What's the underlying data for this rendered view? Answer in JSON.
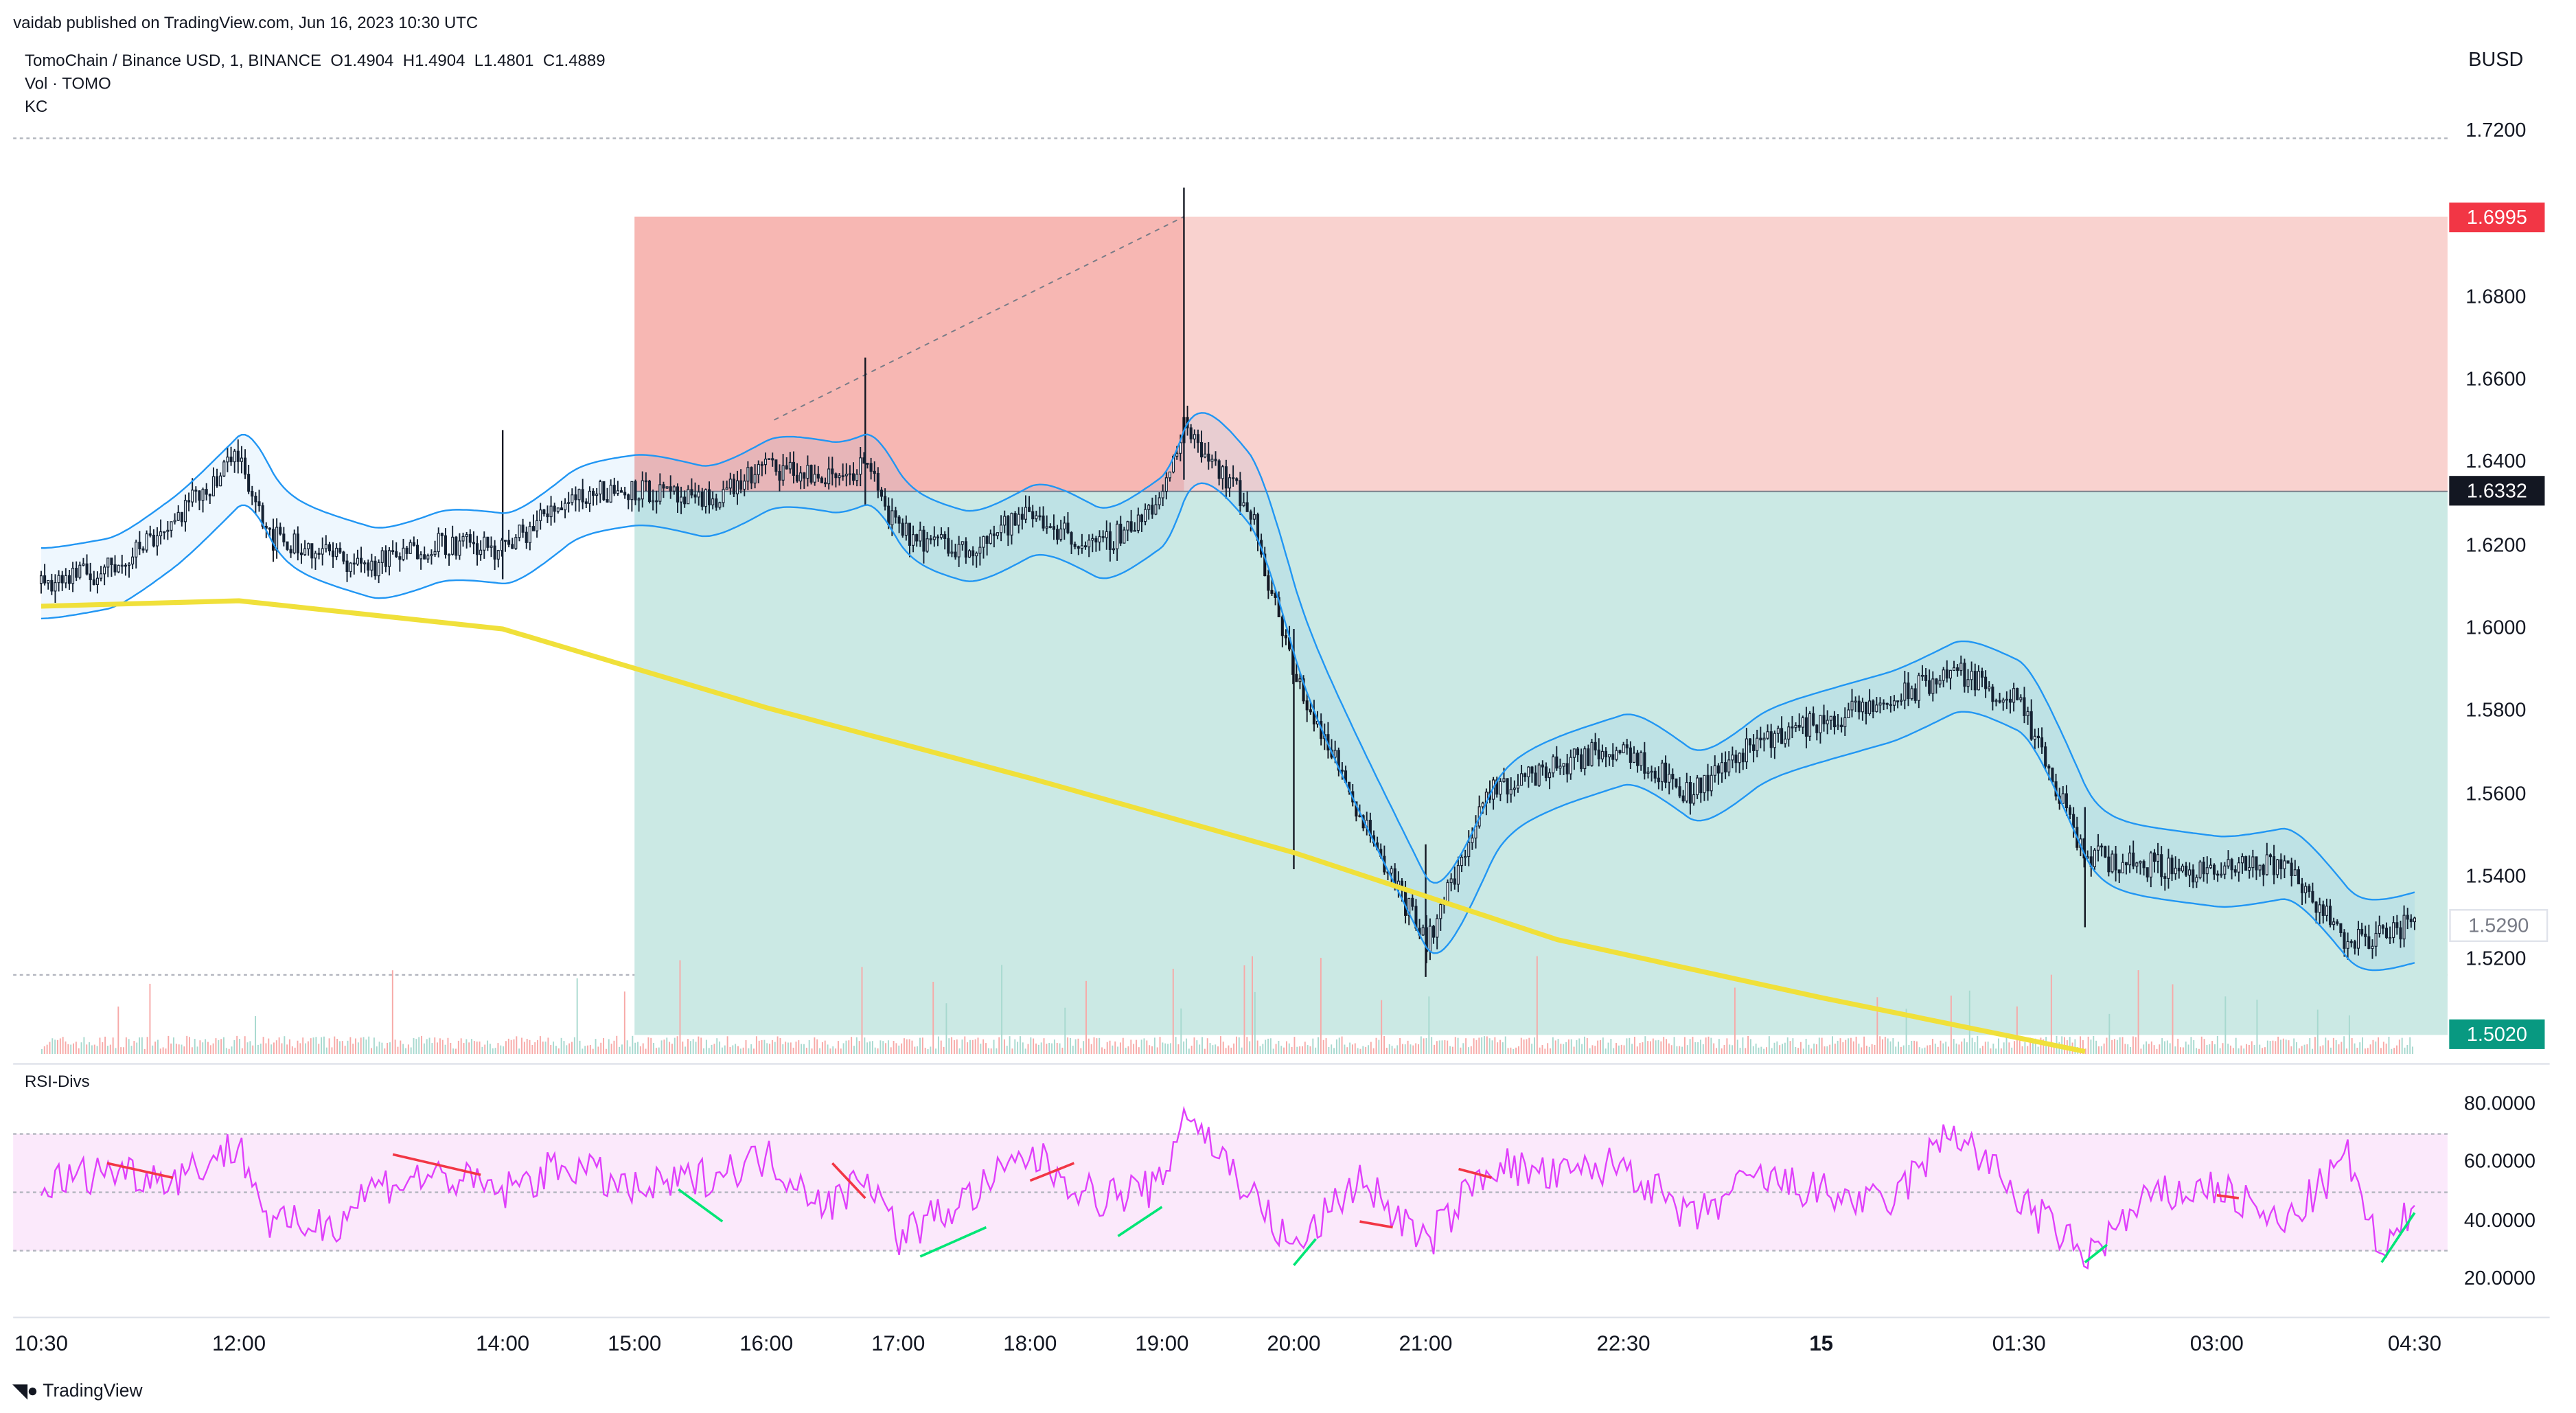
{
  "header": {
    "published": "vaidab published on TradingView.com, Jun 16, 2023 10:30 UTC",
    "symbol_line": "TomoChain / Binance USD, 1, BINANCE",
    "ohlc": {
      "o": "O1.4904",
      "h": "H1.4904",
      "l": "L1.4801",
      "c": "C1.4889"
    },
    "volume_label": "Vol · TOMO",
    "kc_label": "KC",
    "currency": "BUSD"
  },
  "panes": {
    "rsi_label": "RSI-Divs"
  },
  "footer": {
    "brand": "TradingView"
  },
  "chart_data": {
    "type": "candlestick",
    "symbol": "TomoChain / Binance USD",
    "timeframe": "1",
    "exchange": "BINANCE",
    "ylim": [
      1.497,
      1.722
    ],
    "price_ticks": [
      "1.7200",
      "1.6800",
      "1.6600",
      "1.6400",
      "1.6200",
      "1.6000",
      "1.5800",
      "1.5600",
      "1.5400",
      "1.5200"
    ],
    "time_ticks": [
      "10:30",
      "12:00",
      "14:00",
      "15:00",
      "16:00",
      "17:00",
      "18:00",
      "19:00",
      "20:00",
      "21:00",
      "22:30",
      "15",
      "01:30",
      "03:00",
      "04:30"
    ],
    "price_tags": [
      {
        "label": "1.6995",
        "value": 1.6995,
        "color": "#f23645"
      },
      {
        "label": "1.6332",
        "value": 1.6332,
        "color": "#131722"
      },
      {
        "label": "1.5290",
        "value": 1.529,
        "color": "#e0e3eb"
      },
      {
        "label": "1.5020",
        "value": 1.502,
        "color": "#089981"
      }
    ],
    "position": {
      "side": "short",
      "entry": 1.6332,
      "stop": 1.6995,
      "target": 1.502,
      "start": "15:00"
    },
    "close_path": [
      [
        "10:30",
        1.611
      ],
      [
        "11:00",
        1.614
      ],
      [
        "11:30",
        1.626
      ],
      [
        "12:00",
        1.642
      ],
      [
        "12:15",
        1.622
      ],
      [
        "13:00",
        1.615
      ],
      [
        "13:30",
        1.621
      ],
      [
        "14:00",
        1.619
      ],
      [
        "14:30",
        1.632
      ],
      [
        "15:00",
        1.634
      ],
      [
        "15:30",
        1.63
      ],
      [
        "16:00",
        1.639
      ],
      [
        "16:30",
        1.636
      ],
      [
        "16:45",
        1.64
      ],
      [
        "17:00",
        1.623
      ],
      [
        "17:30",
        1.619
      ],
      [
        "18:00",
        1.628
      ],
      [
        "18:30",
        1.619
      ],
      [
        "19:00",
        1.631
      ],
      [
        "19:10",
        1.65
      ],
      [
        "19:40",
        1.629
      ],
      [
        "20:00",
        1.589
      ],
      [
        "20:30",
        1.556
      ],
      [
        "21:00",
        1.524
      ],
      [
        "21:30",
        1.561
      ],
      [
        "22:00",
        1.567
      ],
      [
        "22:30",
        1.572
      ],
      [
        "23:00",
        1.56
      ],
      [
        "23:30",
        1.573
      ],
      [
        "00:30",
        1.582
      ],
      [
        "01:00",
        1.59
      ],
      [
        "01:30",
        1.582
      ],
      [
        "02:00",
        1.545
      ],
      [
        "02:30",
        1.543
      ],
      [
        "03:00",
        1.541
      ],
      [
        "03:30",
        1.544
      ],
      [
        "04:00",
        1.524
      ],
      [
        "04:30",
        1.529
      ]
    ],
    "ma_line": [
      [
        "10:30",
        1.6055
      ],
      [
        "12:00",
        1.6068
      ],
      [
        "14:00",
        1.6
      ],
      [
        "16:00",
        1.581
      ],
      [
        "18:00",
        1.564
      ],
      [
        "20:00",
        1.546
      ],
      [
        "22:00",
        1.525
      ],
      [
        "00:00",
        1.511
      ],
      [
        "02:00",
        1.498
      ]
    ],
    "rsi": {
      "levels": [
        70,
        50,
        30
      ],
      "ticks": [
        "80.0000",
        "60.0000",
        "40.0000",
        "20.0000"
      ],
      "ylim": [
        15,
        85
      ],
      "path": [
        [
          "10:30",
          52
        ],
        [
          "11:00",
          58
        ],
        [
          "11:30",
          55
        ],
        [
          "12:00",
          66
        ],
        [
          "12:15",
          38
        ],
        [
          "12:45",
          40
        ],
        [
          "13:00",
          52
        ],
        [
          "13:30",
          56
        ],
        [
          "14:00",
          50
        ],
        [
          "14:30",
          60
        ],
        [
          "15:00",
          50
        ],
        [
          "15:30",
          55
        ],
        [
          "16:00",
          62
        ],
        [
          "16:30",
          45
        ],
        [
          "16:45",
          58
        ],
        [
          "17:00",
          35
        ],
        [
          "17:30",
          47
        ],
        [
          "18:00",
          63
        ],
        [
          "18:30",
          48
        ],
        [
          "19:00",
          52
        ],
        [
          "19:10",
          79
        ],
        [
          "19:40",
          50
        ],
        [
          "20:00",
          30
        ],
        [
          "20:30",
          55
        ],
        [
          "21:00",
          32
        ],
        [
          "21:30",
          60
        ],
        [
          "22:00",
          55
        ],
        [
          "22:30",
          60
        ],
        [
          "23:00",
          40
        ],
        [
          "23:30",
          55
        ],
        [
          "00:30",
          45
        ],
        [
          "01:00",
          72
        ],
        [
          "01:30",
          48
        ],
        [
          "02:00",
          28
        ],
        [
          "02:30",
          48
        ],
        [
          "03:00",
          52
        ],
        [
          "03:30",
          38
        ],
        [
          "04:00",
          62
        ],
        [
          "04:15",
          26
        ],
        [
          "04:30",
          46
        ]
      ]
    }
  }
}
